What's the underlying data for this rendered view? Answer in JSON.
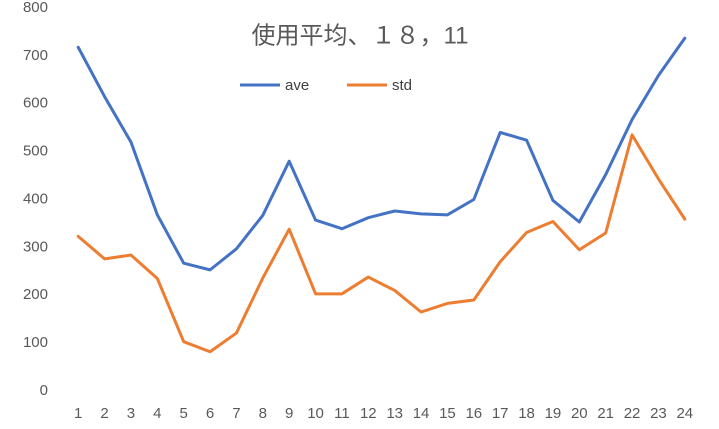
{
  "chart_data": {
    "type": "line",
    "title": "使用平均、１８，11",
    "categories": [
      "1",
      "2",
      "3",
      "4",
      "5",
      "6",
      "7",
      "8",
      "9",
      "10",
      "11",
      "12",
      "13",
      "14",
      "15",
      "16",
      "17",
      "18",
      "19",
      "20",
      "21",
      "22",
      "23",
      "24"
    ],
    "series": [
      {
        "name": "ave",
        "color": "#4472c4",
        "values": [
          718,
          615,
          520,
          368,
          267,
          253,
          297,
          367,
          480,
          357,
          339,
          362,
          376,
          370,
          368,
          400,
          540,
          524,
          398,
          353,
          452,
          567,
          659,
          737
        ]
      },
      {
        "name": "std",
        "color": "#ed7d31",
        "values": [
          323,
          276,
          284,
          235,
          103,
          82,
          121,
          236,
          338,
          203,
          203,
          238,
          210,
          165,
          183,
          190,
          270,
          331,
          354,
          295,
          330,
          535,
          443,
          359
        ]
      }
    ],
    "ylim": [
      0,
      800
    ],
    "yticks": [
      0,
      100,
      200,
      300,
      400,
      500,
      600,
      700,
      800
    ],
    "grid": false
  }
}
